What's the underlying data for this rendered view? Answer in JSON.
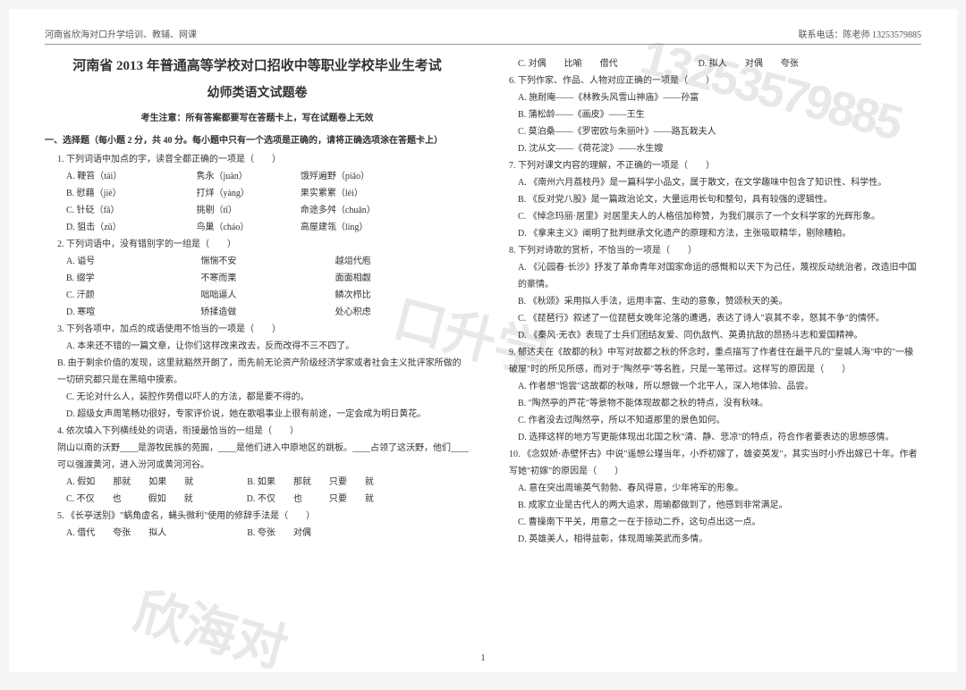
{
  "header": {
    "left": "河南省欣海对口升学培训、教辅、网课",
    "right": "联系电话：陈老师 13253579885"
  },
  "watermarks": {
    "wm1": "13253579885",
    "wm2": "口升学",
    "wm3": "欣海对"
  },
  "title_main": "河南省 2013 年普通高等学校对口招收中等职业学校毕业生考试",
  "title_sub": "幼师类语文试题卷",
  "notice": "考生注意：所有答案都要写在答题卡上，写在试题卷上无效",
  "section1_head": "一、选择题（每小题 2 分，共 40 分。每小题中只有一个选项是正确的，请将正确选项涂在答题卡上）",
  "q1": {
    "stem": "1. 下列词语中加点的字，读音全都正确的一项是（　　）",
    "rows": [
      [
        "A. 鞭笞（tái）",
        "隽永（juàn）",
        "饿殍遍野（piǎo）"
      ],
      [
        "B. 慰藉（jiè）",
        "打烊（yàng）",
        "果实累累（léi）"
      ],
      [
        "C. 针砭（fǎ）",
        "挑剔（tī）",
        "命途多舛（chuǎn）"
      ],
      [
        "D. 狙击（zǔ）",
        "鸟巢（cháo）",
        "高屋建瓴（líng）"
      ]
    ]
  },
  "q2": {
    "stem": "2. 下列词语中，没有错别字的一组是（　　）",
    "rows": [
      [
        "A. 谥号",
        "惴惴不安",
        "越俎代庖"
      ],
      [
        "B. 缀学",
        "不寒而栗",
        "面面相觑"
      ],
      [
        "C. 汗颜",
        "咄咄逼人",
        "鳞次栉比"
      ],
      [
        "D. 寒喧",
        "矫揉造做",
        "处心积虑"
      ]
    ]
  },
  "q3": {
    "stem": "3. 下列各项中，加点的成语使用不恰当的一项是（　　）",
    "opts": [
      "A. 本来还不错的一篇文章，让你们这样改来改去，反而改得不三不四了。",
      "B. 由于剩余价值的发现，这里就豁然开朗了，而先前无论资产阶级经济学家或者社会主义批评家所做的一切研究都只是在黑暗中摸索。",
      "C. 无论对什么人，装腔作势借以吓人的方法，都是要不得的。",
      "D. 超级女声周笔畅功很好，专家评价说，她在歌唱事业上很有前途，一定会成为明日黄花。"
    ]
  },
  "q4": {
    "stem": "4. 依次填入下列横线处的词语，衔接最恰当的一组是（　　）",
    "para": "阴山以南的沃野____是游牧民族的苑囿，____是他们进入中原地区的跳板。____占领了这沃野，他们____可以强渡黄河，进入汾河或黄河河谷。",
    "opts": [
      "A. 假如　　那就　　如果　　就　　　　　　B. 如果　　那就　　只要　　就",
      "C. 不仅　　也　　　假如　　就　　　　　　D. 不仅　　也　　　只要　　就"
    ]
  },
  "q5": {
    "stem": "5. 《长亭送别》\"蜗角虚名，蝇头微利\"使用的修辞手法是（　　）",
    "opts": [
      "A. 借代　　夸张　　拟人　　　　　　　　　B. 夸张　　对偶",
      "C. 对偶　　比喻　　借代　　　　　　　　　D. 拟人　　对偶　　夸张"
    ]
  },
  "q6": {
    "stem": "6. 下列作家、作品、人物对应正确的一项是（　　）",
    "opts": [
      "A. 施耐庵——《林教头风雪山神庙》——孙富",
      "B. 蒲松龄——《画皮》——王生",
      "C. 莫泊桑——《罗密欧与朱丽叶》——路瓦栽夫人",
      "D. 沈从文——《荷花淀》——水生嫂"
    ]
  },
  "q7": {
    "stem": "7. 下列对课文内容的理解，不正确的一项是（　　）",
    "opts": [
      "A. 《南州六月荔枝丹》是一篇科学小品文，属于散文，在文学趣味中包含了知识性、科学性。",
      "B. 《反对党八股》是一篇政治论文，大量运用长句和整句，具有较强的逻辑性。",
      "C. 《悼念玛丽·居里》对居里夫人的人格倍加称赞，为我们展示了一个女科学家的光辉形象。",
      "D. 《拿来主义》阐明了批判继承文化遗产的原理和方法，主张吸取精华，剔除糟粕。"
    ]
  },
  "q8": {
    "stem": "8. 下列对诗歌的赏析，不恰当的一项是（　　）",
    "opts": [
      "A. 《沁园春·长沙》抒发了革命青年对国家命运的感慨和以天下为己任，蔑视反动统治者，改造旧中国的豪情。",
      "B. 《秋颂》采用拟人手法，运用丰富、生动的意象，赞颂秋天的美。",
      "C. 《琵琶行》叙述了一位琵琶女晚年沦落的遭遇，表达了诗人\"哀其不幸，怒其不争\"的情怀。",
      "D. 《秦风·无衣》表现了士兵们团结友爱、同仇敌忾、英勇抗敌的昂扬斗志和爱国精神。"
    ]
  },
  "q9": {
    "stem": "9. 郁达夫在《故都的秋》中写对故都之秋的怀念时，重点描写了作者住在最平凡的\"皇城人海\"中的\"一椽破屋\"时的所见所感，而对于\"陶然亭\"等名胜，只是一笔带过。这样写的原因是（　　）",
    "opts": [
      "A. 作者想\"饱尝\"这故都的秋味，所以想做一个北平人，深入地体验、品尝。",
      "B. \"陶然亭的芦花\"等景物不能体现故都之秋的特点，没有秋味。",
      "C. 作者没去过陶然亭，所以不知道那里的景色如何。",
      "D. 选择这样的地方写更能体现出北国之秋\"清、静、悲凉\"的特点，符合作者要表达的思想感情。"
    ]
  },
  "q10": {
    "stem": "10. 《念奴娇·赤壁怀古》中说\"遥想公瑾当年，小乔初嫁了，雄姿英发\"，其实当时小乔出嫁已十年。作者写她\"初嫁\"的原因是（　　）",
    "opts": [
      "A. 意在突出周瑜英气勃勃、春风得意，少年将军的形象。",
      "B. 成家立业是古代人的两大追求，周瑜都做到了，他感到非常满足。",
      "C. 曹操南下平关，用意之一在于掠动二乔，这句点出这一点。",
      "D. 英雄美人，相得益彰，体现周瑜英武而多情。"
    ]
  },
  "page_num": "1"
}
